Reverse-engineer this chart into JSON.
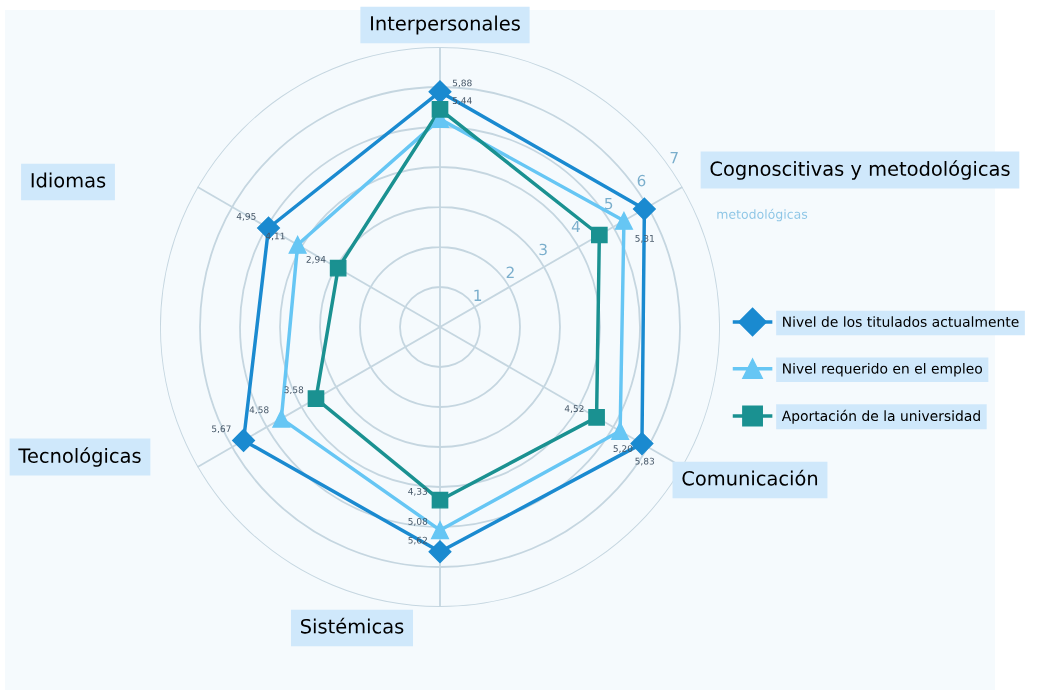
{
  "chart_data": {
    "type": "radar",
    "categories": [
      "Interpersonales",
      "Cognoscitivas y metodológicas",
      "Comunicación",
      "Sistémicas",
      "Tecnológicas",
      "Idiomas"
    ],
    "ylim": [
      0,
      7
    ],
    "yticks": [
      1,
      2,
      3,
      4,
      5,
      6,
      7
    ],
    "grid": true,
    "legend": "right",
    "line_style": "solid",
    "series": [
      {
        "name": "Nivel de los titulados actualmente",
        "color": "#1a8ad0",
        "marker": "diamond",
        "values": [
          5.88,
          5.9,
          5.83,
          5.62,
          5.67,
          4.95
        ],
        "value_labels": [
          "5,88",
          null,
          "5,83",
          "5,62",
          "5,67",
          "4,95"
        ]
      },
      {
        "name": "Nivel requerido en el empleo",
        "color": "#66c6f4",
        "marker": "triangle",
        "values": [
          5.2,
          5.31,
          5.2,
          5.08,
          4.58,
          4.11
        ],
        "value_labels": [
          null,
          "5,31",
          "5,20",
          "5,08",
          "4,58",
          "4,11"
        ]
      },
      {
        "name": "Aportación de la universidad",
        "color": "#1a9191",
        "marker": "square",
        "values": [
          5.44,
          4.6,
          4.52,
          4.33,
          3.58,
          2.94
        ],
        "value_labels": [
          "5,44",
          null,
          "4,52",
          "4,33",
          "3,58",
          "2,94"
        ]
      }
    ],
    "annotations": [
      "metodológicas"
    ]
  }
}
